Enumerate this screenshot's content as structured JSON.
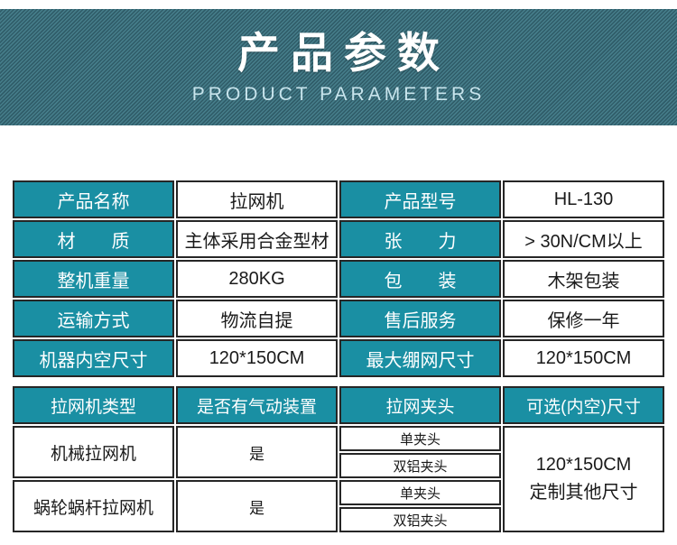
{
  "banner": {
    "title": "产品参数",
    "subtitle": "PRODUCT PARAMETERS"
  },
  "colors": {
    "teal_cell": "#1a8fa3",
    "banner_stripe_light": "#477f8c",
    "banner_stripe_dark": "#2e5a66",
    "table_border": "#262626",
    "subtitle_text": "#c8e4ec"
  },
  "spec_table": {
    "rows": [
      [
        "产品名称",
        "拉网机",
        "产品型号",
        "HL-130"
      ],
      [
        "材　　质",
        "主体采用合金型材",
        "张　　力",
        "> 30N/CM以上"
      ],
      [
        "整机重量",
        "280KG",
        "包　　装",
        "木架包装"
      ],
      [
        "运输方式",
        "物流自提",
        "售后服务",
        "保修一年"
      ],
      [
        "机器内空尺寸",
        "120*150CM",
        "最大绷网尺寸",
        "120*150CM"
      ]
    ]
  },
  "options_table": {
    "headers": [
      "拉网机类型",
      "是否有气动装置",
      "拉网夹头",
      "可选(内空)尺寸"
    ],
    "machine_rows": [
      {
        "type": "机械拉网机",
        "pneumatic": "是",
        "clamps": [
          "单夹头",
          "双铝夹头"
        ]
      },
      {
        "type": "蜗轮蜗杆拉网机",
        "pneumatic": "是",
        "clamps": [
          "单夹头",
          "双铝夹头"
        ]
      }
    ],
    "size_option": {
      "line1": "120*150CM",
      "line2": "定制其他尺寸"
    }
  }
}
